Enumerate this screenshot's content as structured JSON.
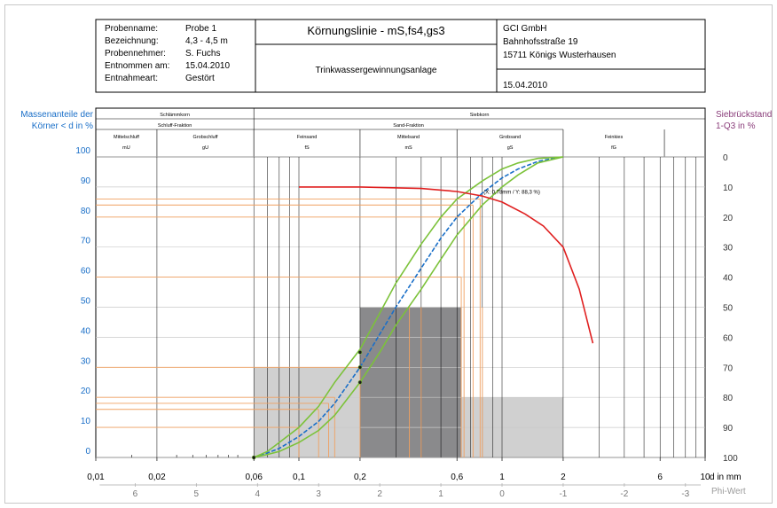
{
  "header": {
    "fields": [
      {
        "label": "Probenname:",
        "value": "Probe 1"
      },
      {
        "label": "Bezeichnung:",
        "value": "4,3 - 4,5 m"
      },
      {
        "label": "Probennehmer:",
        "value": "S. Fuchs"
      },
      {
        "label": "Entnommen am:",
        "value": "15.04.2010"
      },
      {
        "label": "Entnahmeart:",
        "value": "Gestört"
      }
    ],
    "title": "Körnungslinie - mS,fs4,gs3",
    "subtitle": "Trinkwassergewinnungsanlage",
    "company": [
      "GCI GmbH",
      "Bahnhofsstraße 19",
      "15711 Königs Wusterhausen"
    ],
    "date": "15.04.2010"
  },
  "chart_data": {
    "type": "line",
    "title": "Körnungslinie - mS,fs4,gs3",
    "ylabel_left": [
      "Massenanteile der",
      "Körner < d in %"
    ],
    "ylabel_right": [
      "Siebrückstand",
      "1-Q3 in %"
    ],
    "xlabel": "d in mm",
    "phi_label": "Phi-Wert",
    "x_scale": "log",
    "xlim": [
      0.01,
      10
    ],
    "ylim": [
      0,
      100
    ],
    "x_ticks": [
      {
        "v": 0.01,
        "label": "0,01"
      },
      {
        "v": 0.02,
        "label": "0,02"
      },
      {
        "v": 0.06,
        "label": "0,06"
      },
      {
        "v": 0.1,
        "label": "0,1"
      },
      {
        "v": 0.2,
        "label": "0,2"
      },
      {
        "v": 0.6,
        "label": "0,6"
      },
      {
        "v": 1,
        "label": "1"
      },
      {
        "v": 2,
        "label": "2"
      },
      {
        "v": 6,
        "label": "6"
      },
      {
        "v": 10,
        "label": "10"
      }
    ],
    "y_ticks_left": [
      "0",
      "10",
      "20",
      "30",
      "40",
      "50",
      "60",
      "70",
      "80",
      "90",
      "100"
    ],
    "y_ticks_right": [
      "100",
      "90",
      "80",
      "70",
      "60",
      "50",
      "40",
      "30",
      "20",
      "10",
      "0"
    ],
    "phi_ticks": [
      {
        "v": 0.015625,
        "label": "6"
      },
      {
        "v": 0.03125,
        "label": "5"
      },
      {
        "v": 0.0625,
        "label": "4"
      },
      {
        "v": 0.125,
        "label": "3"
      },
      {
        "v": 0.25,
        "label": "2"
      },
      {
        "v": 0.5,
        "label": "1"
      },
      {
        "v": 1,
        "label": "0"
      },
      {
        "v": 2,
        "label": "-1"
      },
      {
        "v": 4,
        "label": "-2"
      },
      {
        "v": 8,
        "label": "-3"
      }
    ],
    "classification": {
      "top_groups": [
        {
          "label": "Schlämmkorn",
          "from": 0.01,
          "to": 0.06
        },
        {
          "label": "Siebkorn",
          "from": 0.06,
          "to": 10
        }
      ],
      "sub_groups": [
        {
          "label": "Schluff-Fraktion",
          "from": 0.01,
          "to": 0.06
        },
        {
          "label": "Sand-Fraktion",
          "from": 0.06,
          "to": 2
        }
      ],
      "fractions": [
        {
          "name": "Mittelschluff",
          "abbr": "mU",
          "from": 0.01,
          "to": 0.02
        },
        {
          "name": "Grobschluff",
          "abbr": "gU",
          "from": 0.02,
          "to": 0.06
        },
        {
          "name": "Feinsand",
          "abbr": "fS",
          "from": 0.06,
          "to": 0.2
        },
        {
          "name": "Mittelsand",
          "abbr": "mS",
          "from": 0.2,
          "to": 0.6
        },
        {
          "name": "Grobsand",
          "abbr": "gS",
          "from": 0.6,
          "to": 2
        },
        {
          "name": "Feinkies",
          "abbr": "fG",
          "from": 2,
          "to": 6.3
        }
      ]
    },
    "fraction_bars": [
      {
        "from": 0.06,
        "to": 0.2,
        "value": 30,
        "color": "#d0d0d0"
      },
      {
        "from": 0.2,
        "to": 0.63,
        "value": 50,
        "color": "#8a8a8c"
      },
      {
        "from": 0.63,
        "to": 2,
        "value": 20,
        "color": "#d0d0d0"
      }
    ],
    "series": [
      {
        "role": "main",
        "color": "#1a6fc8",
        "x": [
          0.06,
          0.07,
          0.08,
          0.1,
          0.125,
          0.15,
          0.2,
          0.25,
          0.3,
          0.4,
          0.5,
          0.6,
          0.8,
          1.0,
          1.2,
          1.5,
          1.8,
          2.0
        ],
        "y": [
          0,
          1.5,
          3,
          7,
          12,
          18,
          30,
          41,
          50,
          63,
          73,
          80,
          88,
          93,
          96,
          98.5,
          99.6,
          100
        ]
      },
      {
        "role": "envelope-upper",
        "color": "#7cc23a",
        "x": [
          0.06,
          0.07,
          0.08,
          0.1,
          0.125,
          0.15,
          0.2,
          0.25,
          0.3,
          0.4,
          0.5,
          0.6,
          0.8,
          1.0,
          1.2,
          1.5,
          2.0
        ],
        "y": [
          0,
          2,
          5,
          10,
          17,
          25,
          36,
          48,
          58,
          71,
          80,
          86,
          92,
          96,
          98,
          99.5,
          100
        ]
      },
      {
        "role": "envelope-lower",
        "color": "#7cc23a",
        "x": [
          0.06,
          0.07,
          0.08,
          0.1,
          0.125,
          0.15,
          0.2,
          0.25,
          0.3,
          0.4,
          0.5,
          0.6,
          0.8,
          1.0,
          1.2,
          1.5,
          2.0
        ],
        "y": [
          0,
          1,
          2,
          5,
          9,
          14,
          25,
          35,
          44,
          56,
          66,
          74,
          84,
          90,
          94,
          98,
          100
        ]
      },
      {
        "role": "residue",
        "color": "#e02020",
        "x": [
          0.1,
          0.2,
          0.4,
          0.6,
          0.8,
          1.0,
          1.3,
          1.6,
          2.0,
          2.4,
          2.8
        ],
        "y": [
          90,
          90,
          89.5,
          88.5,
          87,
          85,
          81,
          77,
          70,
          56,
          38
        ]
      }
    ],
    "markers": [
      {
        "x": 0.2,
        "y": 25
      },
      {
        "x": 0.2,
        "y": 30
      },
      {
        "x": 0.2,
        "y": 35
      },
      {
        "x": 0.06,
        "y": 0
      }
    ],
    "annotation": {
      "x": 0.78,
      "y": 88.3,
      "label": "(X: 0,78mm / Y: 88,3 %)"
    },
    "orange_levels": [
      {
        "y": 10,
        "d": 0.1
      },
      {
        "y": 16,
        "d": 0.125
      },
      {
        "y": 18,
        "d": 0.14
      },
      {
        "y": 20,
        "d": 0.15
      },
      {
        "y": 30,
        "d": 0.2
      },
      {
        "y": 60,
        "d": 0.63
      },
      {
        "y": 80,
        "d": 0.65
      },
      {
        "y": 84,
        "d": 0.72
      },
      {
        "y": 86,
        "d": 0.78
      }
    ],
    "extra_verticals": [
      0.35,
      0.4,
      0.8
    ],
    "grid": true
  }
}
